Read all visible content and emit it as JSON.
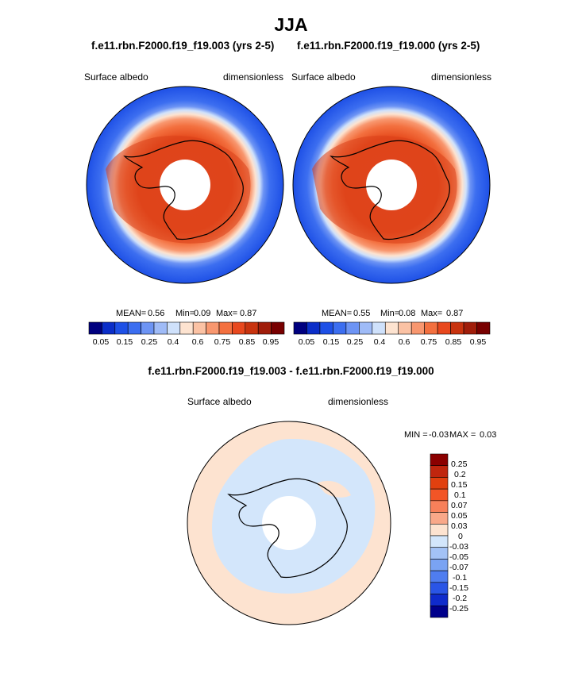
{
  "title": "JJA",
  "panels": [
    {
      "title": "f.e11.rbn.F2000.f19_f19.003 (yrs 2-5)",
      "field": "Surface albedo",
      "units": "dimensionless",
      "stats": {
        "mean_label": "MEAN=",
        "mean": "0.56",
        "min_label": "Min=",
        "min": "0.09",
        "max_label": "Max=",
        "max": "0.87"
      }
    },
    {
      "title": "f.e11.rbn.F2000.f19_f19.000 (yrs 2-5)",
      "field": "Surface albedo",
      "units": "dimensionless",
      "stats": {
        "mean_label": "MEAN=",
        "mean": "0.55",
        "min_label": "Min=",
        "min": "0.08",
        "max_label": "Max=",
        "max": "0.87"
      }
    }
  ],
  "diff_panel": {
    "title": "f.e11.rbn.F2000.f19_f19.003 - f.e11.rbn.F2000.f19_f19.000",
    "field": "Surface albedo",
    "units": "dimensionless",
    "min_label": "MIN =",
    "min": "-0.03",
    "max_label": "MAX =",
    "max": "0.03"
  },
  "colorbar": {
    "colors": [
      "#00007f",
      "#0b2ec8",
      "#1e50e6",
      "#3c6ef0",
      "#6d94f4",
      "#9fbbf7",
      "#cfe1fb",
      "#fde3d0",
      "#fbc2a4",
      "#f8976f",
      "#f3703f",
      "#e8481e",
      "#c8330f",
      "#a01d0a",
      "#780000"
    ],
    "ticks": [
      "0.05",
      "0.15",
      "0.25",
      "0.4",
      "0.6",
      "0.75",
      "0.85",
      "0.95"
    ],
    "tick_boundaries": [
      1,
      3,
      5,
      7,
      8,
      10,
      12,
      14
    ]
  },
  "diff_colorbar": {
    "colors_top_to_bottom": [
      "#8b0000",
      "#c0260e",
      "#e1400f",
      "#f25526",
      "#f7805a",
      "#f9a889",
      "#fde3d0",
      "#d3e6fb",
      "#a3c2f6",
      "#7aa3f3",
      "#4f7df0",
      "#2a55e6",
      "#0f2bcc",
      "#00008b"
    ],
    "labels_top_to_bottom": [
      "0.25",
      "0.2",
      "0.15",
      "0.1",
      "0.07",
      "0.05",
      "0.03",
      "0",
      "-0.03",
      "-0.05",
      "-0.07",
      "-0.1",
      "-0.15",
      "-0.2",
      "-0.25"
    ]
  },
  "chart_data": [
    {
      "type": "heatmap",
      "projection": "south polar stereographic",
      "title": "f.e11.rbn.F2000.f19_f19.003 (yrs 2-5)",
      "variable": "Surface albedo",
      "units": "dimensionless",
      "mean": 0.56,
      "min": 0.09,
      "max": 0.87,
      "levels": [
        0.05,
        0.1,
        0.15,
        0.2,
        0.25,
        0.3,
        0.4,
        0.5,
        0.6,
        0.7,
        0.75,
        0.8,
        0.85,
        0.9,
        0.95
      ]
    },
    {
      "type": "heatmap",
      "projection": "south polar stereographic",
      "title": "f.e11.rbn.F2000.f19_f19.000 (yrs 2-5)",
      "variable": "Surface albedo",
      "units": "dimensionless",
      "mean": 0.55,
      "min": 0.08,
      "max": 0.87,
      "levels": [
        0.05,
        0.1,
        0.15,
        0.2,
        0.25,
        0.3,
        0.4,
        0.5,
        0.6,
        0.7,
        0.75,
        0.8,
        0.85,
        0.9,
        0.95
      ]
    },
    {
      "type": "heatmap",
      "projection": "south polar stereographic",
      "title": "f.e11.rbn.F2000.f19_f19.003 - f.e11.rbn.F2000.f19_f19.000",
      "variable": "Surface albedo",
      "units": "dimensionless",
      "min": -0.03,
      "max": 0.03,
      "levels": [
        -0.25,
        -0.2,
        -0.15,
        -0.1,
        -0.07,
        -0.05,
        -0.03,
        0,
        0.03,
        0.05,
        0.07,
        0.1,
        0.15,
        0.2,
        0.25
      ]
    }
  ]
}
